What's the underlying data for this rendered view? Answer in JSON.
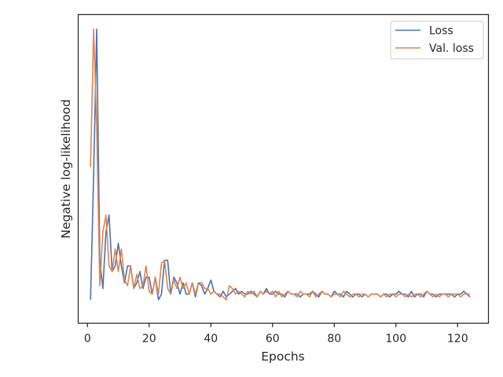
{
  "chart_data": {
    "type": "line",
    "title": "",
    "xlabel": "Epochs",
    "ylabel": "Negative log-likelihood",
    "xlim": [
      -3,
      130
    ],
    "ylim": [
      0,
      100
    ],
    "xticks": [
      0,
      20,
      40,
      60,
      80,
      100,
      120
    ],
    "yticks_shown": false,
    "grid": false,
    "legend_position": "top-right",
    "series": [
      {
        "name": "Loss",
        "color": "#4c72b0",
        "x": [
          1,
          2,
          3,
          4,
          5,
          6,
          7,
          8,
          9,
          10,
          11,
          12,
          13,
          14,
          15,
          16,
          17,
          18,
          19,
          20,
          21,
          22,
          23,
          24,
          25,
          26,
          27,
          28,
          29,
          30,
          31,
          32,
          33,
          34,
          35,
          36,
          37,
          38,
          39,
          40,
          41,
          42,
          43,
          44,
          45,
          46,
          47,
          48,
          49,
          50,
          51,
          52,
          53,
          54,
          55,
          56,
          57,
          58,
          59,
          60,
          61,
          62,
          63,
          64,
          65,
          66,
          67,
          68,
          69,
          70,
          71,
          72,
          73,
          74,
          75,
          76,
          77,
          78,
          79,
          80,
          81,
          82,
          83,
          84,
          85,
          86,
          87,
          88,
          89,
          90,
          91,
          92,
          93,
          94,
          95,
          96,
          97,
          98,
          99,
          100,
          101,
          102,
          103,
          104,
          105,
          106,
          107,
          108,
          109,
          110,
          111,
          112,
          113,
          114,
          115,
          116,
          117,
          118,
          119,
          120,
          121,
          122,
          123,
          124
        ],
        "y": [
          4,
          48,
          100,
          18,
          8,
          28,
          34,
          14,
          16,
          24,
          16,
          10,
          16,
          16,
          8,
          10,
          14,
          8,
          12,
          12,
          6,
          12,
          4,
          6,
          18,
          18,
          6,
          12,
          10,
          6,
          10,
          6,
          6,
          10,
          5,
          10,
          9,
          6,
          8,
          11,
          7,
          6,
          5,
          7,
          5,
          6,
          7,
          8,
          6,
          7,
          6,
          6,
          7,
          6,
          5,
          7,
          6,
          8,
          6,
          6,
          7,
          6,
          6,
          5,
          7,
          6,
          6,
          6,
          5,
          6,
          6,
          6,
          7,
          6,
          5,
          7,
          6,
          6,
          5,
          7,
          6,
          6,
          5,
          7,
          6,
          5,
          6,
          6,
          5,
          6,
          5,
          6,
          6,
          6,
          5,
          6,
          6,
          5,
          6,
          6,
          7,
          6,
          6,
          5,
          7,
          5,
          6,
          6,
          5,
          7,
          6,
          6,
          5,
          6,
          6,
          6,
          6,
          6,
          5,
          6,
          6,
          7,
          6,
          5
        ]
      },
      {
        "name": "Val. loss",
        "color": "#dd8452",
        "x": [
          1,
          2,
          3,
          4,
          5,
          6,
          7,
          8,
          9,
          10,
          11,
          12,
          13,
          14,
          15,
          16,
          17,
          18,
          19,
          20,
          21,
          22,
          23,
          24,
          25,
          26,
          27,
          28,
          29,
          30,
          31,
          32,
          33,
          34,
          35,
          36,
          37,
          38,
          39,
          40,
          41,
          42,
          43,
          44,
          45,
          46,
          47,
          48,
          49,
          50,
          51,
          52,
          53,
          54,
          55,
          56,
          57,
          58,
          59,
          60,
          61,
          62,
          63,
          64,
          65,
          66,
          67,
          68,
          69,
          70,
          71,
          72,
          73,
          74,
          75,
          76,
          77,
          78,
          79,
          80,
          81,
          82,
          83,
          84,
          85,
          86,
          87,
          88,
          89,
          90,
          91,
          92,
          93,
          94,
          95,
          96,
          97,
          98,
          99,
          100,
          101,
          102,
          103,
          104,
          105,
          106,
          107,
          108,
          109,
          110,
          111,
          112,
          113,
          114,
          115,
          116,
          117,
          118,
          119,
          120,
          121,
          122,
          123,
          124
        ],
        "y": [
          51,
          100,
          65,
          9,
          28,
          34,
          16,
          14,
          22,
          14,
          22,
          11,
          9,
          16,
          8,
          13,
          8,
          9,
          16,
          7,
          6,
          12,
          6,
          17,
          18,
          8,
          6,
          11,
          8,
          12,
          8,
          10,
          6,
          10,
          6,
          10,
          10,
          8,
          8,
          6,
          7,
          6,
          6,
          5,
          4,
          9,
          8,
          6,
          7,
          6,
          5,
          7,
          6,
          7,
          5,
          7,
          6,
          7,
          6,
          7,
          5,
          7,
          5,
          6,
          7,
          6,
          6,
          5,
          7,
          6,
          6,
          5,
          7,
          5,
          6,
          7,
          6,
          6,
          5,
          6,
          6,
          5,
          7,
          6,
          5,
          6,
          6,
          5,
          6,
          6,
          5,
          6,
          6,
          6,
          5,
          6,
          5,
          6,
          6,
          5,
          6,
          6,
          5,
          6,
          5,
          6,
          6,
          5,
          6,
          7,
          6,
          5,
          6,
          5,
          6,
          6,
          5,
          6,
          6,
          6,
          5,
          6,
          6,
          6
        ]
      }
    ]
  }
}
